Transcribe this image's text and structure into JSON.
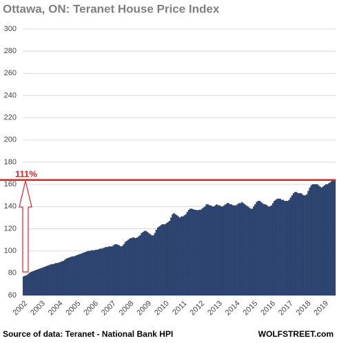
{
  "chart_data": {
    "type": "bar",
    "title": "Ottawa, ON: Teranet House Price Index",
    "source": "Source of data: Teranet - National Bank HPI",
    "brand": "WOLFSTREET.com",
    "annotation": "111%",
    "reference_line": 164,
    "color": "#2b4577",
    "grid": true,
    "ylim": [
      60,
      300
    ],
    "yticks": [
      60,
      80,
      100,
      120,
      140,
      160,
      180,
      200,
      220,
      240,
      260,
      280,
      300
    ],
    "categories": [
      "2002",
      null,
      null,
      null,
      null,
      null,
      null,
      null,
      null,
      null,
      null,
      null,
      "2003",
      null,
      null,
      null,
      null,
      null,
      null,
      null,
      null,
      null,
      null,
      null,
      "2004",
      null,
      null,
      null,
      null,
      null,
      null,
      null,
      null,
      null,
      null,
      null,
      "2005",
      null,
      null,
      null,
      null,
      null,
      null,
      null,
      null,
      null,
      null,
      null,
      "2006",
      null,
      null,
      null,
      null,
      null,
      null,
      null,
      null,
      null,
      null,
      null,
      "2007",
      null,
      null,
      null,
      null,
      null,
      null,
      null,
      null,
      null,
      null,
      null,
      "2008",
      null,
      null,
      null,
      null,
      null,
      null,
      null,
      null,
      null,
      null,
      null,
      "2009",
      null,
      null,
      null,
      null,
      null,
      null,
      null,
      null,
      null,
      null,
      null,
      "2010",
      null,
      null,
      null,
      null,
      null,
      null,
      null,
      null,
      null,
      null,
      null,
      "2011",
      null,
      null,
      null,
      null,
      null,
      null,
      null,
      null,
      null,
      null,
      null,
      "2012",
      null,
      null,
      null,
      null,
      null,
      null,
      null,
      null,
      null,
      null,
      null,
      "2013",
      null,
      null,
      null,
      null,
      null,
      null,
      null,
      null,
      null,
      null,
      null,
      "2014",
      null,
      null,
      null,
      null,
      null,
      null,
      null,
      null,
      null,
      null,
      null,
      "2015",
      null,
      null,
      null,
      null,
      null,
      null,
      null,
      null,
      null,
      null,
      null,
      "2016",
      null,
      null,
      null,
      null,
      null,
      null,
      null,
      null,
      null,
      null,
      null,
      "2017",
      null,
      null,
      null,
      null,
      null,
      null,
      null,
      null,
      null,
      null,
      null,
      "2018",
      null,
      null,
      null,
      null,
      null,
      null,
      null,
      null,
      null,
      null,
      null,
      "2019",
      null,
      null,
      null,
      null,
      null,
      null,
      null
    ],
    "values": [
      77,
      77.5,
      78,
      79,
      80,
      81,
      81.5,
      82,
      82.5,
      83,
      83.5,
      84,
      84.5,
      85,
      85.5,
      86,
      86.5,
      87,
      87.5,
      88,
      88,
      88.5,
      89,
      89,
      89.5,
      90,
      90.5,
      91,
      92,
      93,
      93.5,
      94,
      94.5,
      95,
      95,
      95.5,
      96,
      96.5,
      97,
      97.5,
      98,
      98.5,
      99,
      99.5,
      100,
      100,
      100.5,
      100.5,
      100.5,
      101,
      101,
      101.5,
      102,
      102,
      102.5,
      103,
      103.5,
      103.5,
      104,
      104,
      104,
      105,
      106,
      106,
      105.5,
      105,
      104,
      104.5,
      106,
      108,
      109,
      110,
      111,
      111.5,
      112,
      112,
      111.5,
      112,
      113,
      114,
      116,
      117,
      118,
      118,
      117,
      116,
      115,
      114,
      114,
      116,
      119,
      121,
      122,
      123,
      124,
      124,
      124,
      125,
      126,
      127,
      130,
      133,
      134,
      133,
      132,
      131,
      130,
      131,
      131,
      132,
      133,
      135,
      137,
      138,
      138,
      137.5,
      137,
      137,
      136.5,
      137,
      137,
      138,
      139,
      140,
      142,
      142,
      141,
      141,
      140,
      140,
      141,
      142,
      141,
      141,
      140,
      140,
      141,
      142,
      143,
      143,
      142,
      142,
      141,
      141,
      141,
      142,
      143,
      143,
      144,
      143,
      142,
      141,
      140,
      139,
      138,
      138,
      140,
      142,
      144,
      145,
      145,
      144,
      143,
      142,
      142,
      141,
      140,
      140,
      141,
      143,
      145,
      146,
      147,
      147,
      147,
      146,
      146,
      145,
      145,
      145,
      146,
      148,
      150,
      152,
      153,
      153,
      152,
      152,
      152,
      151,
      150,
      150,
      151,
      154,
      157,
      159,
      160,
      160,
      160,
      160,
      159,
      158,
      157,
      158,
      159,
      160,
      160,
      161,
      162,
      163,
      163,
      163.5
    ]
  }
}
